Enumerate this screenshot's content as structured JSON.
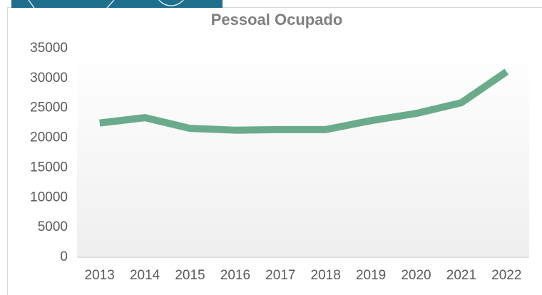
{
  "chart_data": {
    "type": "line",
    "title": "Pessoal Ocupado",
    "categories": [
      "2013",
      "2014",
      "2015",
      "2016",
      "2017",
      "2018",
      "2019",
      "2020",
      "2021",
      "2022"
    ],
    "series": [
      {
        "name": "Pessoal Ocupado",
        "color": "#6aab8b",
        "values": [
          22500,
          23400,
          21600,
          21300,
          21400,
          21400,
          22900,
          24100,
          25900,
          31100
        ]
      }
    ],
    "ylim": [
      0,
      35000
    ],
    "yticks": [
      0,
      5000,
      10000,
      15000,
      20000,
      25000,
      30000,
      35000
    ],
    "grid": false
  }
}
